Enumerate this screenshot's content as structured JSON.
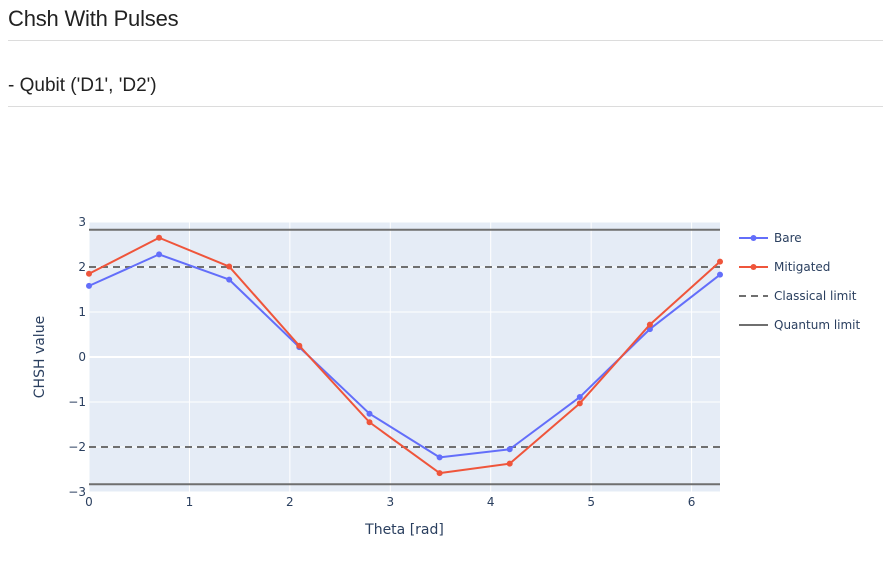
{
  "page": {
    "title": "Chsh With Pulses",
    "subtitle": "- Qubit ('D1', 'D2')"
  },
  "colors": {
    "plot_bg": "#e5ecf6",
    "grid": "#ffffff",
    "bare": "#636efa",
    "mitigated": "#ef553b",
    "limit": "#6f6f6f",
    "text": "#2a3f5f"
  },
  "chart_data": {
    "type": "line",
    "title": "",
    "xlabel": "Theta [rad]",
    "ylabel": "CHSH value",
    "xlim": [
      0,
      6.283
    ],
    "ylim": [
      -3,
      3
    ],
    "xticks": [
      0,
      1,
      2,
      3,
      4,
      5,
      6
    ],
    "yticks": [
      3,
      2,
      1,
      0,
      -1,
      -2,
      -3
    ],
    "xtick_labels": [
      "0",
      "1",
      "2",
      "3",
      "4",
      "5",
      "6"
    ],
    "ytick_labels": [
      "3",
      "2",
      "1",
      "0",
      "−1",
      "−2",
      "−3"
    ],
    "grid": true,
    "x": [
      0,
      0.698,
      1.396,
      2.094,
      2.793,
      3.491,
      4.189,
      4.887,
      5.585,
      6.283
    ],
    "series": [
      {
        "name": "Bare",
        "values": [
          1.58,
          2.28,
          1.72,
          0.22,
          -1.26,
          -2.23,
          -2.05,
          -0.89,
          0.62,
          1.83
        ]
      },
      {
        "name": "Mitigated",
        "values": [
          1.85,
          2.65,
          2.01,
          0.25,
          -1.45,
          -2.58,
          -2.37,
          -1.03,
          0.72,
          2.12
        ]
      }
    ],
    "reference_lines": [
      {
        "name": "Classical limit",
        "values": [
          2,
          -2
        ],
        "style": "dashed"
      },
      {
        "name": "Quantum limit",
        "values": [
          2.828,
          -2.828
        ],
        "style": "solid"
      }
    ],
    "legend": [
      "Bare",
      "Mitigated",
      "Classical limit",
      "Quantum limit"
    ],
    "legend_position": "right"
  }
}
